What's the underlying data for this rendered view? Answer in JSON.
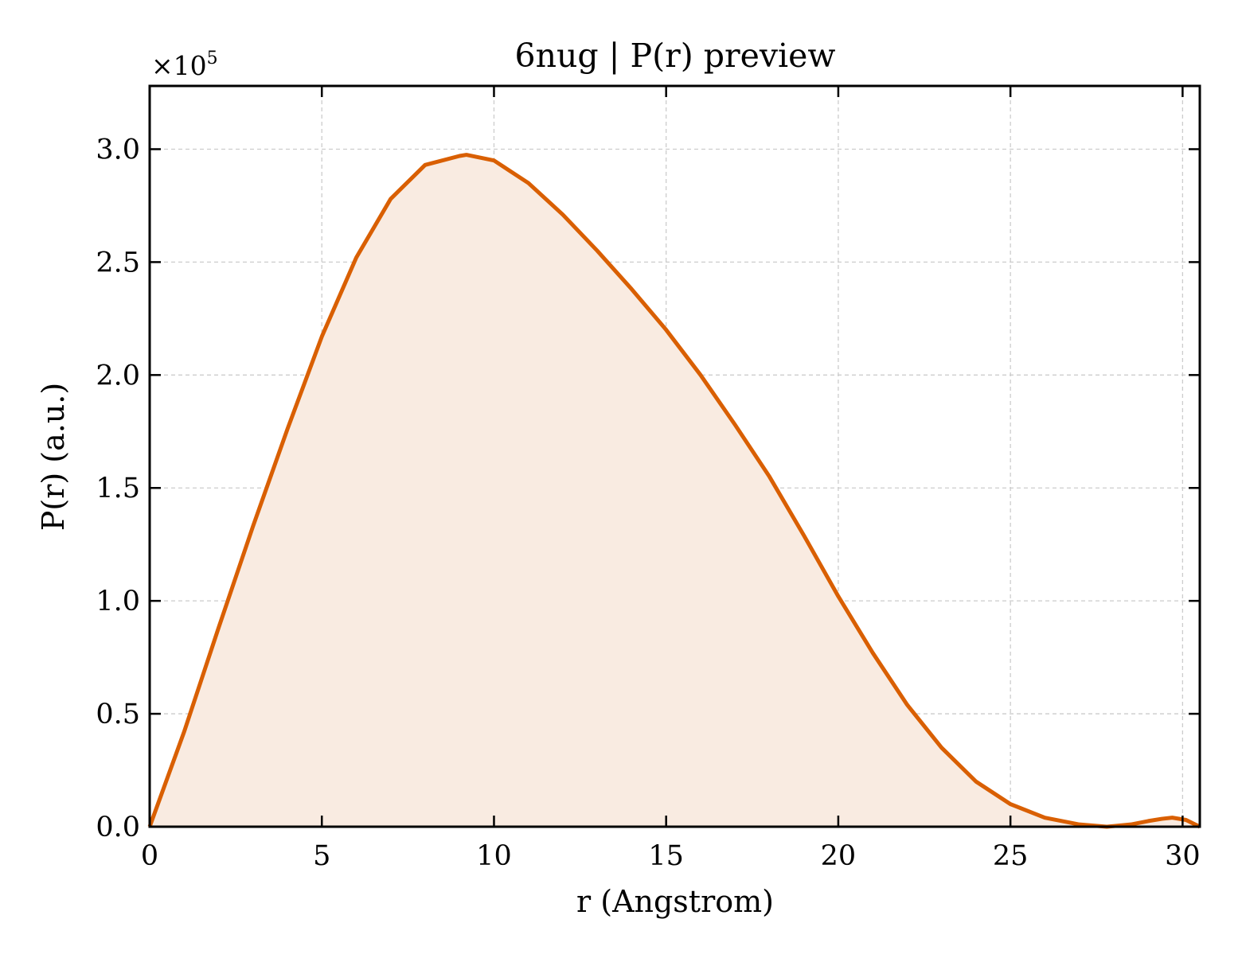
{
  "chart_data": {
    "type": "area",
    "title": "6nug | P(r) preview",
    "xlabel": "r (Angstrom)",
    "ylabel": "P(r) (a.u.)",
    "y_multiplier_text": "×10",
    "y_multiplier_exponent": "5",
    "xlim": [
      0,
      30.5
    ],
    "ylim": [
      0,
      3.28
    ],
    "x_ticks": [
      0,
      5,
      10,
      15,
      20,
      25,
      30
    ],
    "y_ticks": [
      0.0,
      0.5,
      1.0,
      1.5,
      2.0,
      2.5,
      3.0
    ],
    "x_tick_labels": [
      "0",
      "5",
      "10",
      "15",
      "20",
      "25",
      "30"
    ],
    "y_tick_labels": [
      "0.0",
      "0.5",
      "1.0",
      "1.5",
      "2.0",
      "2.5",
      "3.0"
    ],
    "grid": true,
    "legend": "none",
    "line_color": "#d95f02",
    "fill_color": "#f9ebe1",
    "series": [
      {
        "x": [
          0,
          1,
          2,
          3,
          4,
          5,
          6,
          7,
          8,
          9,
          9.2,
          10,
          11,
          12,
          13,
          14,
          15,
          16,
          17,
          18,
          19,
          20,
          21,
          22,
          23,
          24,
          25,
          26,
          27,
          27.8,
          28.5,
          29,
          29.4,
          29.7,
          30.1,
          30.5
        ],
        "y": [
          0,
          0.42,
          0.88,
          1.33,
          1.76,
          2.17,
          2.52,
          2.78,
          2.93,
          2.97,
          2.975,
          2.95,
          2.85,
          2.71,
          2.55,
          2.38,
          2.2,
          2.0,
          1.78,
          1.55,
          1.29,
          1.02,
          0.77,
          0.54,
          0.35,
          0.2,
          0.1,
          0.04,
          0.01,
          0.0,
          0.01,
          0.025,
          0.035,
          0.04,
          0.03,
          0.0
        ]
      }
    ]
  }
}
